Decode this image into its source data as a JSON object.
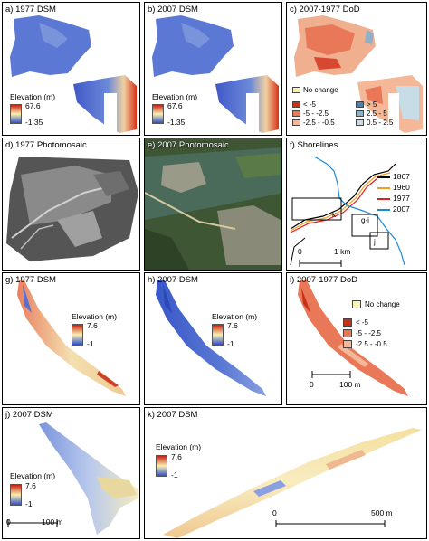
{
  "panels": {
    "a": {
      "title": "a) 1977 DSM",
      "legend_title": "Elevation (m)",
      "max": "67.6",
      "min": "-1.35"
    },
    "b": {
      "title": "b) 2007 DSM",
      "legend_title": "Elevation (m)",
      "max": "67.6",
      "min": "-1.35"
    },
    "c": {
      "title": "c) 2007-1977 DoD",
      "no_change": "No change",
      "classes_left": [
        "< -5",
        "-5 - -2.5",
        "-2.5 - -0.5"
      ],
      "classes_right": [
        "> 5",
        "2.5 - 5",
        "0.5 - 2.5"
      ]
    },
    "d": {
      "title": "d) 1977 Photomosaic"
    },
    "e": {
      "title": "e) 2007 Photomosaic"
    },
    "f": {
      "title": "f) Shorelines",
      "years": [
        "1867",
        "1960",
        "1977",
        "2007"
      ],
      "box_k": "k",
      "box_gi": "g-i",
      "box_j": "j",
      "scale_0": "0",
      "scale_1": "1 km"
    },
    "g": {
      "title": "g) 1977 DSM",
      "legend_title": "Elevation (m)",
      "max": "7.6",
      "min": "-1"
    },
    "h": {
      "title": "h) 2007 DSM",
      "legend_title": "Elevation (m)",
      "max": "7.6",
      "min": "-1"
    },
    "i": {
      "title": "i) 2007-1977 DoD",
      "no_change": "No change",
      "classes": [
        "< -5",
        "-5 - -2.5",
        "-2.5 - -0.5"
      ],
      "scale_0": "0",
      "scale_1": "100 m"
    },
    "j": {
      "title": "j) 2007 DSM",
      "legend_title": "Elevation (m)",
      "max": "7.6",
      "min": "-1",
      "scale_0": "0",
      "scale_1": "100 m"
    },
    "k": {
      "title": "k) 2007 DSM",
      "legend_title": "Elevation (m)",
      "max": "7.6",
      "min": "-1",
      "scale_0": "0",
      "scale_1": "500 m"
    }
  },
  "colors": {
    "shoreline_1867": "#000000",
    "shoreline_1960": "#f0a020",
    "shoreline_1977": "#e02020",
    "shoreline_2007": "#1a8ad8",
    "elev_low": "#3050c8",
    "elev_mid": "#f8f0b0",
    "elev_high": "#c82010",
    "dod_lt_m5": "#c83018",
    "dod_m5_m25": "#e87858",
    "dod_m25_m05": "#f4b898",
    "dod_gt5": "#5080a8",
    "dod_25_5": "#90b0c8",
    "dod_05_25": "#c8dce8",
    "no_change": "#f8f4b0"
  }
}
